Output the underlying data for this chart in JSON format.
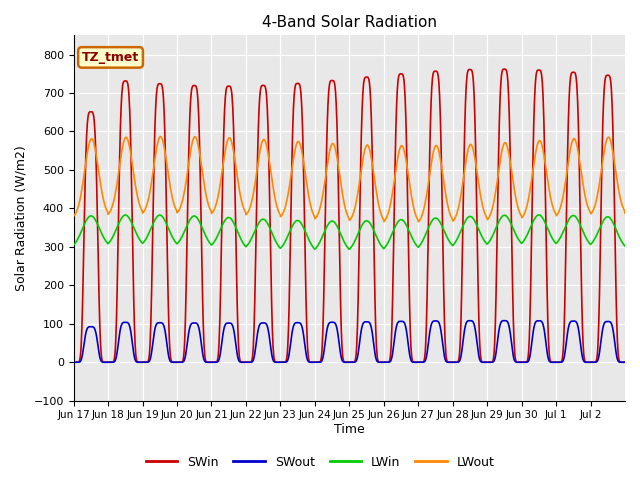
{
  "title": "4-Band Solar Radiation",
  "ylabel": "Solar Radiation (W/m2)",
  "xlabel": "Time",
  "ylim": [
    -100,
    850
  ],
  "yticks": [
    -100,
    0,
    100,
    200,
    300,
    400,
    500,
    600,
    700,
    800
  ],
  "background_color": "#ffffff",
  "plot_bg_color": "#e8e8e8",
  "grid_color": "#ffffff",
  "label_box_text": "TZ_tmet",
  "label_box_facecolor": "#ffffcc",
  "label_box_edgecolor": "#cc6600",
  "series": {
    "SWin": {
      "color": "#cc0000",
      "lw": 1.2
    },
    "SWout": {
      "color": "#0000cc",
      "lw": 1.2
    },
    "LWin": {
      "color": "#00cc00",
      "lw": 1.2
    },
    "LWout": {
      "color": "#ff8800",
      "lw": 1.2
    }
  },
  "tick_labels": [
    "Jun 17",
    "Jun 18",
    "Jun 19",
    "Jun 20",
    "Jun 21",
    "Jun 22",
    "Jun 23",
    "Jun 24",
    "Jun 25",
    "Jun 26",
    "Jun 27",
    "Jun 28",
    "Jun 29",
    "Jun 30",
    "Jul 1",
    "Jul 2"
  ],
  "tick_positions": [
    0,
    1,
    2,
    3,
    4,
    5,
    6,
    7,
    8,
    9,
    10,
    11,
    12,
    13,
    14,
    15
  ],
  "n_days": 16,
  "SWin_peak": 740,
  "SWout_peak": 105,
  "LWin_base": 290,
  "LWin_peak": 375,
  "LWout_base": 370,
  "LWout_peak": 575
}
